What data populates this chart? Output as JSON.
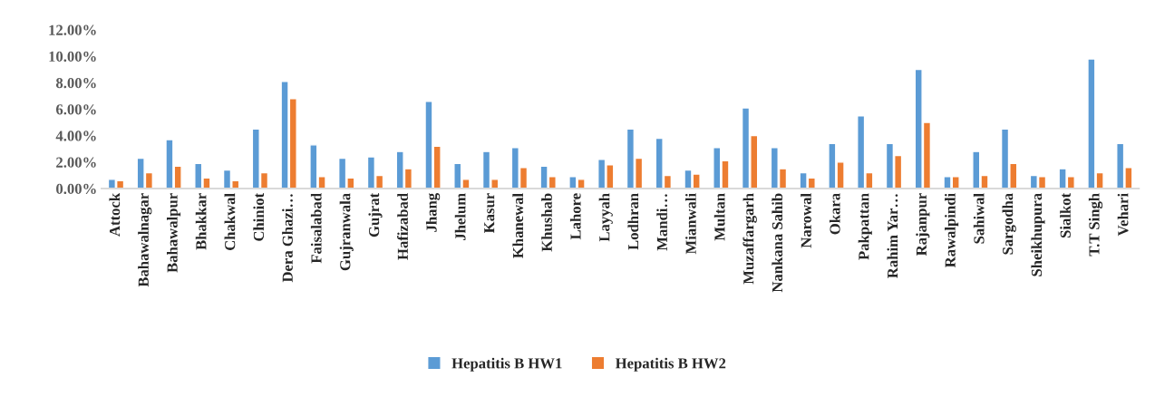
{
  "chart_data": {
    "type": "bar",
    "categories": [
      "Attock",
      "Bahawalnagar",
      "Bahawalpur",
      "Bhakkar",
      "Chakwal",
      "Chiniot",
      "Dera Ghazi…",
      "Faisalabad",
      "Gujranwala",
      "Gujrat",
      "Hafizabad",
      "Jhang",
      "Jhelum",
      "Kasur",
      "Khanewal",
      "Khushab",
      "Lahore",
      "Layyah",
      "Lodhran",
      "Mandi…",
      "Mianwali",
      "Multan",
      "Muzaffargarh",
      "Nankana Sahib",
      "Narowal",
      "Okara",
      "Pakpattan",
      "Rahim Yar…",
      "Rajanpur",
      "Rawalpindi",
      "Sahiwal",
      "Sargodha",
      "Sheikhupura",
      "Sialkot",
      "T.T Singh",
      "Vehari"
    ],
    "series": [
      {
        "name": "Hepatitis B HW1",
        "color": "#5b9bd5",
        "values": [
          0.7,
          2.3,
          3.7,
          1.9,
          1.4,
          4.5,
          8.1,
          3.3,
          2.3,
          2.4,
          2.8,
          6.6,
          1.9,
          2.8,
          3.1,
          1.7,
          0.9,
          2.2,
          4.5,
          3.8,
          1.4,
          3.1,
          6.1,
          3.1,
          1.2,
          3.4,
          5.5,
          3.4,
          9.0,
          0.9,
          2.8,
          4.5,
          1.0,
          1.5,
          9.8,
          3.4
        ]
      },
      {
        "name": "Hepatitis B HW2",
        "color": "#ed7d31",
        "values": [
          0.6,
          1.2,
          1.7,
          0.8,
          0.6,
          1.2,
          6.8,
          0.9,
          0.8,
          1.0,
          1.5,
          3.2,
          0.7,
          0.7,
          1.6,
          0.9,
          0.7,
          1.8,
          2.3,
          1.0,
          1.1,
          2.1,
          4.0,
          1.5,
          0.8,
          2.0,
          1.2,
          2.5,
          5.0,
          0.9,
          1.0,
          1.9,
          0.9,
          0.9,
          1.2,
          1.6
        ]
      }
    ],
    "ylim": [
      0,
      12
    ],
    "yticks": [
      {
        "value": 0,
        "label": "0.00%"
      },
      {
        "value": 2,
        "label": "2.00%"
      },
      {
        "value": 4,
        "label": "4.00%"
      },
      {
        "value": 6,
        "label": "6.00%"
      },
      {
        "value": 8,
        "label": "8.00%"
      },
      {
        "value": 10,
        "label": "10.00%"
      },
      {
        "value": 12,
        "label": "12.00%"
      }
    ],
    "grid": false,
    "legend": "bottom"
  }
}
